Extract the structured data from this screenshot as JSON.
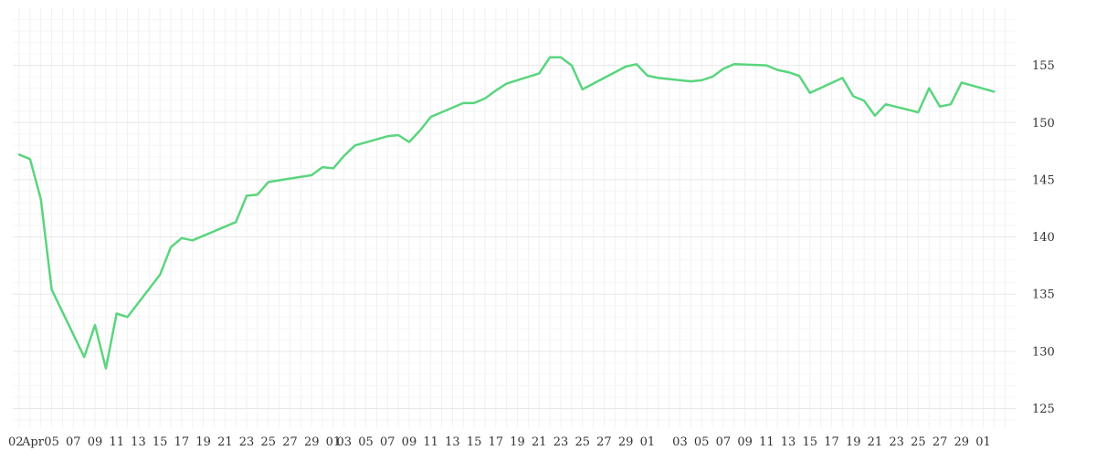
{
  "chart_data": {
    "type": "line",
    "title": "",
    "xlabel": "",
    "ylabel": "",
    "ylim": [
      123,
      159
    ],
    "yticks": [
      125,
      130,
      135,
      140,
      145,
      150,
      155
    ],
    "x_tick_labels": [
      "02",
      "Apr",
      "05",
      "07",
      "09",
      "11",
      "13",
      "15",
      "17",
      "19",
      "21",
      "23",
      "25",
      "27",
      "29",
      "01",
      "03",
      "05",
      "07",
      "09",
      "11",
      "13",
      "15",
      "17",
      "19",
      "21",
      "23",
      "25",
      "27",
      "29",
      "01",
      "03",
      "05",
      "07",
      "09",
      "11",
      "13",
      "15",
      "17",
      "19",
      "21",
      "23",
      "25",
      "27",
      "29",
      "01"
    ],
    "grid": true,
    "line_color": "#5ad57e",
    "series": [
      {
        "x": [
          "Apr 02",
          "Apr 03",
          "Apr 04",
          "Apr 05",
          "Apr 08",
          "Apr 09",
          "Apr 10",
          "Apr 11",
          "Apr 12",
          "Apr 15",
          "Apr 16",
          "Apr 17",
          "Apr 18",
          "Apr 22",
          "Apr 23",
          "Apr 24",
          "Apr 25",
          "Apr 29",
          "Apr 30",
          "May 01",
          "May 02",
          "May 03",
          "May 06",
          "May 07",
          "May 08",
          "May 09",
          "May 10",
          "May 13",
          "May 14",
          "May 15",
          "May 16",
          "May 17",
          "May 20",
          "May 21",
          "May 22",
          "May 23",
          "May 24",
          "May 28",
          "May 29",
          "May 30",
          "May 31",
          "Jun 03",
          "Jun 04",
          "Jun 05",
          "Jun 06",
          "Jun 07",
          "Jun 10",
          "Jun 11",
          "Jun 12",
          "Jun 13",
          "Jun 14",
          "Jun 17",
          "Jun 18",
          "Jun 19",
          "Jun 20",
          "Jun 21",
          "Jun 24",
          "Jun 25",
          "Jun 26",
          "Jun 27",
          "Jun 28",
          "Jul 01"
        ],
        "values": [
          147.2,
          146.8,
          143.3,
          135.4,
          129.5,
          132.3,
          128.5,
          133.3,
          133.0,
          136.7,
          139.1,
          139.9,
          139.7,
          141.3,
          143.6,
          143.7,
          144.8,
          145.4,
          146.1,
          146.0,
          147.1,
          148.0,
          148.8,
          148.9,
          148.3,
          149.3,
          150.5,
          151.7,
          151.7,
          152.1,
          152.8,
          153.4,
          154.3,
          155.7,
          155.7,
          155.0,
          152.9,
          154.9,
          155.1,
          154.1,
          153.9,
          153.6,
          153.7,
          154.0,
          154.7,
          155.1,
          155.0,
          154.6,
          154.4,
          154.1,
          152.6,
          153.9,
          152.3,
          151.9,
          150.6,
          151.6,
          150.9,
          153.0,
          151.4,
          151.6,
          153.5,
          152.7
        ]
      }
    ]
  }
}
